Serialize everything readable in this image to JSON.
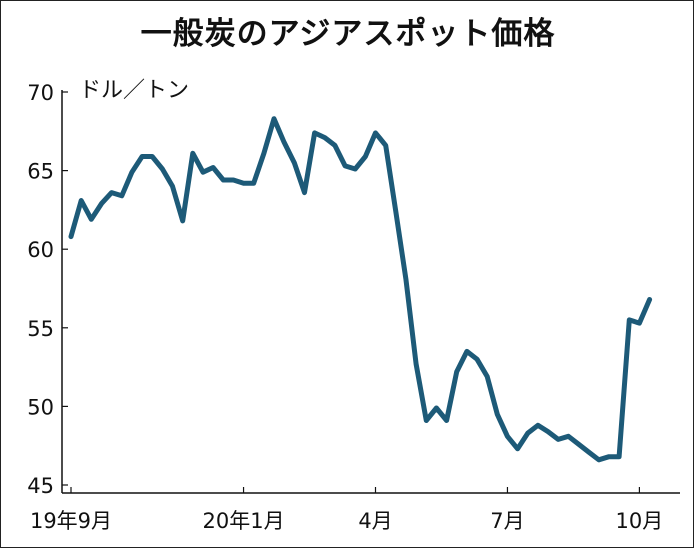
{
  "chart_data": {
    "type": "line",
    "title": "一般炭のアジアスポット価格",
    "ylabel": "ドル／トン",
    "xlabel": "",
    "ylim": [
      45,
      70
    ],
    "yticks": [
      45,
      50,
      55,
      60,
      65,
      70
    ],
    "xticks": [
      {
        "label": "19年9月",
        "week": 0
      },
      {
        "label": "20年1月",
        "week": 17
      },
      {
        "label": "4月",
        "week": 30
      },
      {
        "label": "7月",
        "week": 43
      },
      {
        "label": "10月",
        "week": 56
      }
    ],
    "line_color": "#1d5a78",
    "series": [
      {
        "values": [
          60.8,
          63.1,
          61.9,
          62.9,
          63.6,
          63.4,
          64.9,
          65.9,
          65.9,
          65.1,
          64.0,
          61.8,
          66.1,
          64.9,
          65.2,
          64.4,
          64.4,
          64.2,
          64.2,
          66.1,
          68.3,
          66.8,
          65.5,
          63.6,
          67.4,
          67.1,
          66.6,
          65.3,
          65.1,
          65.9,
          67.4,
          66.6,
          62.4,
          58.1,
          52.7,
          49.1,
          49.9,
          49.1,
          52.2,
          53.5,
          53.0,
          51.9,
          49.5,
          48.1,
          47.3,
          48.3,
          48.8,
          48.4,
          47.9,
          48.1,
          47.6,
          47.1,
          46.6,
          46.8,
          46.8,
          55.5,
          55.3,
          56.8
        ]
      }
    ]
  }
}
